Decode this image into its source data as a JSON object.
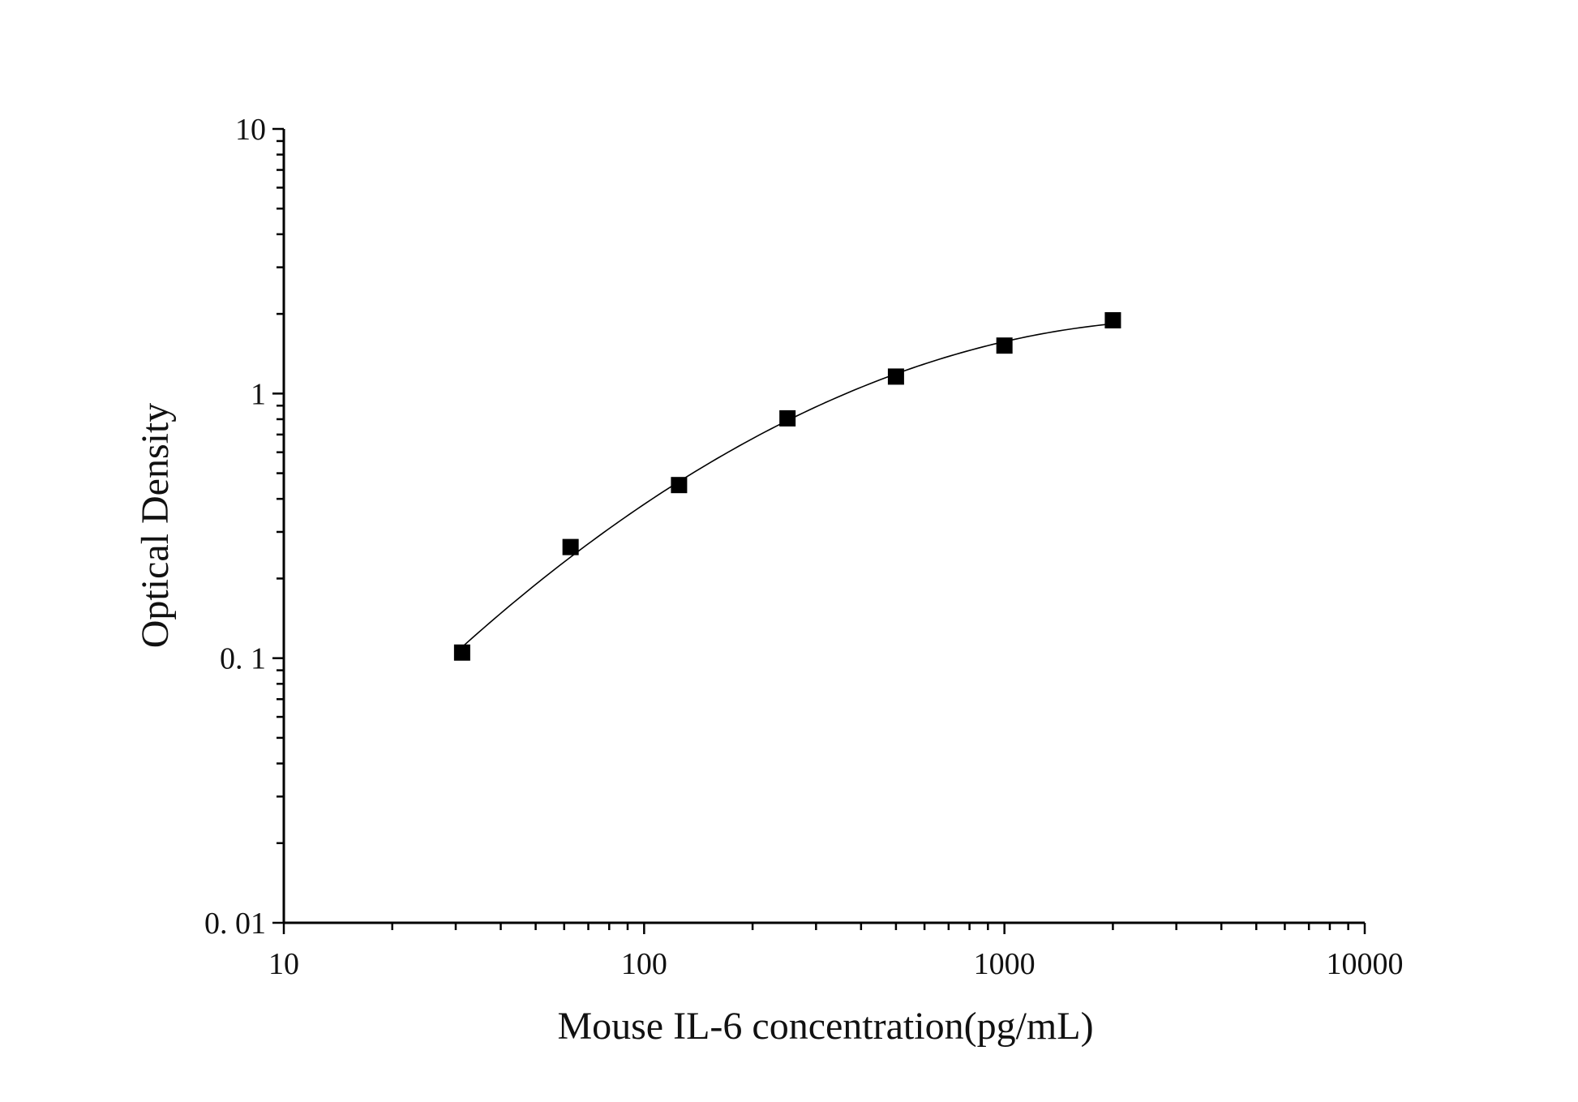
{
  "chart_data": {
    "type": "scatter",
    "title": "",
    "xlabel": "Mouse IL-6 concentration(pg/mL)",
    "ylabel": "Optical Density",
    "xscale": "log",
    "yscale": "log",
    "xlim": [
      10,
      10000
    ],
    "ylim": [
      0.01,
      10
    ],
    "xticks": [
      10,
      100,
      1000,
      10000
    ],
    "xtick_labels": [
      "10",
      "100",
      "1000",
      "10000"
    ],
    "yticks": [
      0.01,
      0.1,
      1,
      10
    ],
    "ytick_labels": [
      "0. 01",
      "0. 1",
      "1",
      "10"
    ],
    "grid": false,
    "legend": "none",
    "series": [
      {
        "marker": "square",
        "color": "#000000",
        "fit_line": true,
        "x": [
          31.25,
          62.5,
          125,
          250,
          500,
          1000,
          2000
        ],
        "y": [
          0.105,
          0.263,
          0.451,
          0.806,
          1.159,
          1.518,
          1.892
        ]
      }
    ]
  }
}
